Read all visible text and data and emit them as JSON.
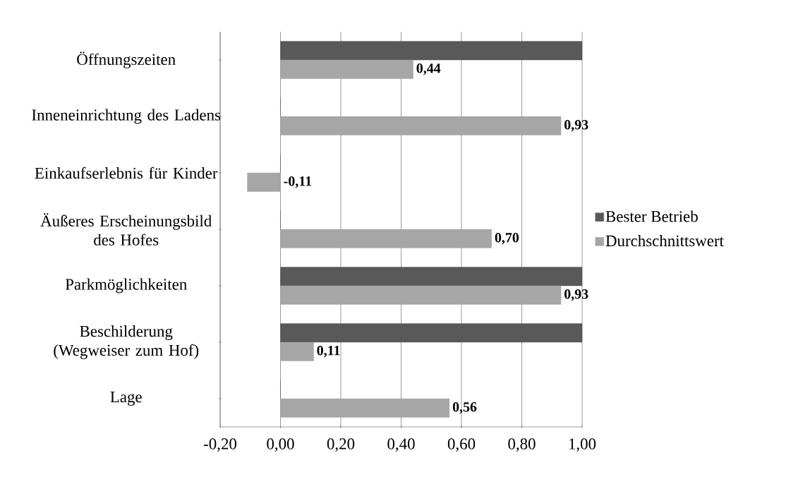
{
  "chart_data": {
    "type": "bar",
    "orientation": "horizontal",
    "categories": [
      "Öffnungszeiten",
      "Inneneinrichtung des Ladens",
      "Einkaufserlebnis für Kinder",
      "Äußeres Erscheinungsbild des Hofes",
      "Parkmöglichkeiten",
      "Beschilderung (Wegweiser zum Hof)",
      "Lage"
    ],
    "series": [
      {
        "name": "Bester Betrieb",
        "color": "#595959",
        "values": [
          1.0,
          0,
          0,
          0,
          1.0,
          1.0,
          0
        ]
      },
      {
        "name": "Durchschnittswert",
        "color": "#a6a6a6",
        "values": [
          0.44,
          0.93,
          -0.11,
          0.7,
          0.93,
          0.11,
          0.56
        ],
        "value_labels": [
          "0,44",
          "0,93",
          "-0,11",
          "0,70",
          "0,93",
          "0,11",
          "0,56"
        ]
      }
    ],
    "xlim": [
      -0.2,
      1.0
    ],
    "xticks": [
      {
        "value": -0.2,
        "label": "-0,20"
      },
      {
        "value": 0,
        "label": "0,00"
      },
      {
        "value": 0.2,
        "label": "0,20"
      },
      {
        "value": 0.4,
        "label": "0,40"
      },
      {
        "value": 0.6,
        "label": "0,60"
      },
      {
        "value": 0.8,
        "label": "0,80"
      },
      {
        "value": 1.0,
        "label": "1,00"
      }
    ],
    "grid": "x",
    "legend": "right"
  }
}
